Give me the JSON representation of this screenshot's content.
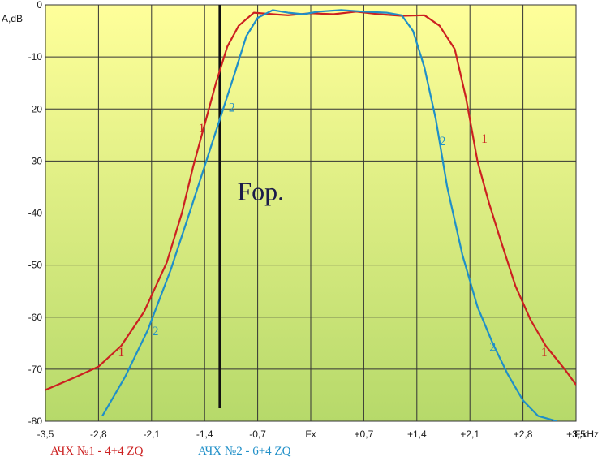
{
  "chart_data": {
    "type": "line",
    "xlabel": "F,kHz",
    "ylabel": "A,dB",
    "xlim": [
      -3.5,
      3.5
    ],
    "ylim": [
      -80,
      0
    ],
    "x_ticks": [
      {
        "value": -3.5,
        "label": "-3,5"
      },
      {
        "value": -2.8,
        "label": "-2,8"
      },
      {
        "value": -2.1,
        "label": "-2,1"
      },
      {
        "value": -1.4,
        "label": "-1,4"
      },
      {
        "value": -0.7,
        "label": "-0,7"
      },
      {
        "value": 0,
        "label": "Fx"
      },
      {
        "value": 0.7,
        "label": "+0,7"
      },
      {
        "value": 1.4,
        "label": "+1,4"
      },
      {
        "value": 2.1,
        "label": "+2,1"
      },
      {
        "value": 2.8,
        "label": "+2,8"
      },
      {
        "value": 3.5,
        "label": "+3,5"
      }
    ],
    "y_ticks": [
      {
        "value": 0,
        "label": "0"
      },
      {
        "value": -10,
        "label": "-10"
      },
      {
        "value": -20,
        "label": "-20"
      },
      {
        "value": -30,
        "label": "-30"
      },
      {
        "value": -40,
        "label": "-40"
      },
      {
        "value": -50,
        "label": "-50"
      },
      {
        "value": -60,
        "label": "-60"
      },
      {
        "value": -70,
        "label": "-70"
      },
      {
        "value": -80,
        "label": "-80"
      }
    ],
    "grid": true,
    "colors": {
      "background_top": "#ffff9a",
      "background_bottom": "#b6d96a",
      "grid": "#333333"
    },
    "series": [
      {
        "name": "АЧХ №1 - 4+4 ZQ",
        "color": "#cc2020",
        "curve_labels": [
          {
            "text": "1",
            "x": -2.5,
            "y": -67.5
          },
          {
            "text": "1",
            "x": -1.44,
            "y": -24.5
          },
          {
            "text": "1",
            "x": 2.29,
            "y": -26.5
          },
          {
            "text": "1",
            "x": 3.08,
            "y": -67.5
          }
        ],
        "points": [
          [
            -3.5,
            -74
          ],
          [
            -3.1,
            -71.5
          ],
          [
            -2.8,
            -69.5
          ],
          [
            -2.5,
            -65.5
          ],
          [
            -2.2,
            -59
          ],
          [
            -1.9,
            -49.5
          ],
          [
            -1.7,
            -40
          ],
          [
            -1.55,
            -31
          ],
          [
            -1.4,
            -23
          ],
          [
            -1.25,
            -15
          ],
          [
            -1.1,
            -8
          ],
          [
            -0.95,
            -4
          ],
          [
            -0.75,
            -1.5
          ],
          [
            -0.5,
            -1.8
          ],
          [
            -0.3,
            -2
          ],
          [
            0,
            -1.6
          ],
          [
            0.3,
            -1.8
          ],
          [
            0.6,
            -1.3
          ],
          [
            0.9,
            -1.8
          ],
          [
            1.2,
            -2.1
          ],
          [
            1.5,
            -2
          ],
          [
            1.7,
            -4
          ],
          [
            1.9,
            -8.5
          ],
          [
            2.05,
            -18
          ],
          [
            2.2,
            -30
          ],
          [
            2.35,
            -38
          ],
          [
            2.5,
            -45
          ],
          [
            2.7,
            -54
          ],
          [
            2.9,
            -60.5
          ],
          [
            3.1,
            -65.5
          ],
          [
            3.35,
            -70
          ],
          [
            3.5,
            -73
          ]
        ]
      },
      {
        "name": "АЧХ №2 - 6+4 ZQ",
        "color": "#1f8fc8",
        "curve_labels": [
          {
            "text": "2",
            "x": -1.04,
            "y": -20.5
          },
          {
            "text": "2",
            "x": -2.05,
            "y": -63.5
          },
          {
            "text": "2",
            "x": 1.74,
            "y": -27
          },
          {
            "text": "2",
            "x": 2.4,
            "y": -66.5
          }
        ],
        "points": [
          [
            -2.75,
            -79
          ],
          [
            -2.45,
            -71.5
          ],
          [
            -2.15,
            -62.5
          ],
          [
            -1.85,
            -51
          ],
          [
            -1.6,
            -40
          ],
          [
            -1.4,
            -31
          ],
          [
            -1.2,
            -22
          ],
          [
            -1.0,
            -13
          ],
          [
            -0.85,
            -6
          ],
          [
            -0.7,
            -2.5
          ],
          [
            -0.5,
            -1
          ],
          [
            -0.3,
            -1.5
          ],
          [
            -0.1,
            -1.8
          ],
          [
            0.1,
            -1.3
          ],
          [
            0.4,
            -1
          ],
          [
            0.7,
            -1.3
          ],
          [
            1.0,
            -1.5
          ],
          [
            1.2,
            -2
          ],
          [
            1.35,
            -5
          ],
          [
            1.5,
            -12
          ],
          [
            1.65,
            -22
          ],
          [
            1.8,
            -35
          ],
          [
            2.0,
            -48
          ],
          [
            2.2,
            -58
          ],
          [
            2.4,
            -65
          ],
          [
            2.6,
            -71
          ],
          [
            2.8,
            -76
          ],
          [
            3.0,
            -79
          ],
          [
            3.25,
            -80
          ]
        ]
      }
    ],
    "annotations": [
      {
        "text": "Fop.",
        "x": -0.97,
        "y": -37.5
      }
    ],
    "marker_line": {
      "x": -1.2,
      "y_from": -77.5,
      "y_to": 0
    }
  }
}
